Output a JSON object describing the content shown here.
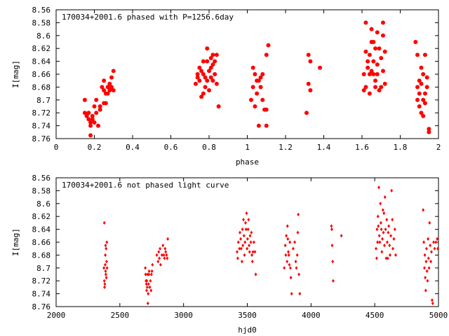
{
  "chart_data": [
    {
      "type": "scatter",
      "title": "170034+2001.6 phased with P=1256.6day",
      "xlabel": "phase",
      "ylabel": "I[mag]",
      "xlim": [
        0,
        2
      ],
      "ylim": [
        8.76,
        8.56
      ],
      "y_inverted": true,
      "xticks": [
        "0",
        "0.2",
        "0.4",
        "0.6",
        "0.8",
        "1",
        "1.2",
        "1.4",
        "1.6",
        "1.8",
        "2"
      ],
      "yticks": [
        "8.56",
        "8.58",
        "8.6",
        "8.62",
        "8.64",
        "8.66",
        "8.68",
        "8.7",
        "8.72",
        "8.74",
        "8.76"
      ],
      "marker": "filled-circle-large",
      "color": "#ff0000",
      "points": [
        [
          0.15,
          8.7
        ],
        [
          0.15,
          8.72
        ],
        [
          0.16,
          8.725
        ],
        [
          0.17,
          8.72
        ],
        [
          0.17,
          8.73
        ],
        [
          0.18,
          8.735
        ],
        [
          0.18,
          8.74
        ],
        [
          0.18,
          8.755
        ],
        [
          0.19,
          8.725
        ],
        [
          0.19,
          8.73
        ],
        [
          0.2,
          8.71
        ],
        [
          0.2,
          8.735
        ],
        [
          0.21,
          8.72
        ],
        [
          0.21,
          8.7
        ],
        [
          0.22,
          8.74
        ],
        [
          0.23,
          8.71
        ],
        [
          0.23,
          8.715
        ],
        [
          0.24,
          8.68
        ],
        [
          0.25,
          8.67
        ],
        [
          0.25,
          8.685
        ],
        [
          0.25,
          8.705
        ],
        [
          0.26,
          8.69
        ],
        [
          0.26,
          8.705
        ],
        [
          0.27,
          8.68
        ],
        [
          0.27,
          8.69
        ],
        [
          0.28,
          8.675
        ],
        [
          0.28,
          8.685
        ],
        [
          0.29,
          8.665
        ],
        [
          0.29,
          8.68
        ],
        [
          0.3,
          8.655
        ],
        [
          0.3,
          8.685
        ],
        [
          0.73,
          8.675
        ],
        [
          0.74,
          8.66
        ],
        [
          0.74,
          8.665
        ],
        [
          0.75,
          8.67
        ],
        [
          0.75,
          8.65
        ],
        [
          0.76,
          8.655
        ],
        [
          0.76,
          8.695
        ],
        [
          0.77,
          8.64
        ],
        [
          0.77,
          8.66
        ],
        [
          0.77,
          8.69
        ],
        [
          0.78,
          8.665
        ],
        [
          0.78,
          8.68
        ],
        [
          0.79,
          8.62
        ],
        [
          0.79,
          8.64
        ],
        [
          0.79,
          8.67
        ],
        [
          0.8,
          8.655
        ],
        [
          0.8,
          8.685
        ],
        [
          0.81,
          8.65
        ],
        [
          0.81,
          8.665
        ],
        [
          0.81,
          8.635
        ],
        [
          0.82,
          8.63
        ],
        [
          0.82,
          8.645
        ],
        [
          0.82,
          8.67
        ],
        [
          0.83,
          8.64
        ],
        [
          0.83,
          8.66
        ],
        [
          0.84,
          8.675
        ],
        [
          0.84,
          8.63
        ],
        [
          0.85,
          8.71
        ],
        [
          1.02,
          8.7
        ],
        [
          1.03,
          8.68
        ],
        [
          1.03,
          8.65
        ],
        [
          1.04,
          8.66
        ],
        [
          1.04,
          8.71
        ],
        [
          1.05,
          8.69
        ],
        [
          1.05,
          8.67
        ],
        [
          1.06,
          8.67
        ],
        [
          1.06,
          8.74
        ],
        [
          1.07,
          8.665
        ],
        [
          1.07,
          8.68
        ],
        [
          1.08,
          8.7
        ],
        [
          1.08,
          8.66
        ],
        [
          1.09,
          8.715
        ],
        [
          1.1,
          8.63
        ],
        [
          1.1,
          8.715
        ],
        [
          1.1,
          8.74
        ],
        [
          1.11,
          8.615
        ],
        [
          1.31,
          8.72
        ],
        [
          1.32,
          8.675
        ],
        [
          1.32,
          8.63
        ],
        [
          1.33,
          8.64
        ],
        [
          1.33,
          8.685
        ],
        [
          1.38,
          8.65
        ],
        [
          1.61,
          8.685
        ],
        [
          1.61,
          8.66
        ],
        [
          1.62,
          8.58
        ],
        [
          1.62,
          8.625
        ],
        [
          1.62,
          8.68
        ],
        [
          1.63,
          8.65
        ],
        [
          1.63,
          8.64
        ],
        [
          1.64,
          8.69
        ],
        [
          1.64,
          8.63
        ],
        [
          1.64,
          8.66
        ],
        [
          1.65,
          8.59
        ],
        [
          1.65,
          8.655
        ],
        [
          1.65,
          8.61
        ],
        [
          1.66,
          8.66
        ],
        [
          1.66,
          8.61
        ],
        [
          1.66,
          8.64
        ],
        [
          1.67,
          8.67
        ],
        [
          1.67,
          8.68
        ],
        [
          1.67,
          8.62
        ],
        [
          1.68,
          8.595
        ],
        [
          1.68,
          8.645
        ],
        [
          1.68,
          8.66
        ],
        [
          1.69,
          8.62
        ],
        [
          1.69,
          8.685
        ],
        [
          1.7,
          8.635
        ],
        [
          1.7,
          8.68
        ],
        [
          1.71,
          8.58
        ],
        [
          1.71,
          8.6
        ],
        [
          1.71,
          8.655
        ],
        [
          1.72,
          8.625
        ],
        [
          1.72,
          8.675
        ],
        [
          1.88,
          8.61
        ],
        [
          1.89,
          8.63
        ],
        [
          1.89,
          8.68
        ],
        [
          1.89,
          8.7
        ],
        [
          1.9,
          8.67
        ],
        [
          1.9,
          8.69
        ],
        [
          1.9,
          8.71
        ],
        [
          1.91,
          8.72
        ],
        [
          1.91,
          8.65
        ],
        [
          1.91,
          8.675
        ],
        [
          1.92,
          8.7
        ],
        [
          1.92,
          8.66
        ],
        [
          1.92,
          8.725
        ],
        [
          1.93,
          8.69
        ],
        [
          1.93,
          8.705
        ],
        [
          1.93,
          8.63
        ],
        [
          1.94,
          8.665
        ],
        [
          1.94,
          8.68
        ],
        [
          1.95,
          8.745
        ],
        [
          1.95,
          8.75
        ]
      ]
    },
    {
      "type": "scatter",
      "title": "170034+2001.6 not phased light curve",
      "xlabel": "hjd0",
      "ylabel": "I[mag]",
      "xlim": [
        2000,
        5000
      ],
      "ylim": [
        8.76,
        8.56
      ],
      "y_inverted": true,
      "xticks": [
        "2000",
        "2500",
        "3000",
        "3500",
        "4000",
        "4500",
        "5000"
      ],
      "yticks": [
        "8.56",
        "8.58",
        "8.6",
        "8.62",
        "8.64",
        "8.66",
        "8.68",
        "8.7",
        "8.72",
        "8.74",
        "8.76"
      ],
      "marker": "filled-diamond",
      "color": "#ff0000",
      "points": [
        [
          2375,
          8.7
        ],
        [
          2378,
          8.72
        ],
        [
          2380,
          8.73
        ],
        [
          2382,
          8.725
        ],
        [
          2385,
          8.695
        ],
        [
          2386,
          8.68
        ],
        [
          2388,
          8.665
        ],
        [
          2388,
          8.705
        ],
        [
          2390,
          8.71
        ],
        [
          2392,
          8.67
        ],
        [
          2394,
          8.715
        ],
        [
          2396,
          8.69
        ],
        [
          2398,
          8.66
        ],
        [
          2400,
          8.7
        ],
        [
          2378,
          8.63
        ],
        [
          2700,
          8.7
        ],
        [
          2702,
          8.71
        ],
        [
          2705,
          8.72
        ],
        [
          2708,
          8.725
        ],
        [
          2710,
          8.735
        ],
        [
          2712,
          8.72
        ],
        [
          2715,
          8.73
        ],
        [
          2718,
          8.71
        ],
        [
          2720,
          8.755
        ],
        [
          2722,
          8.74
        ],
        [
          2725,
          8.725
        ],
        [
          2728,
          8.71
        ],
        [
          2730,
          8.705
        ],
        [
          2735,
          8.73
        ],
        [
          2740,
          8.72
        ],
        [
          2745,
          8.735
        ],
        [
          2748,
          8.71
        ],
        [
          2752,
          8.705
        ],
        [
          2756,
          8.695
        ],
        [
          2790,
          8.68
        ],
        [
          2800,
          8.69
        ],
        [
          2805,
          8.675
        ],
        [
          2810,
          8.685
        ],
        [
          2815,
          8.67
        ],
        [
          2820,
          8.695
        ],
        [
          2830,
          8.68
        ],
        [
          2838,
          8.665
        ],
        [
          2845,
          8.68
        ],
        [
          2850,
          8.685
        ],
        [
          2855,
          8.67
        ],
        [
          2860,
          8.675
        ],
        [
          2866,
          8.68
        ],
        [
          2872,
          8.685
        ],
        [
          2876,
          8.655
        ],
        [
          3420,
          8.675
        ],
        [
          3425,
          8.685
        ],
        [
          3430,
          8.66
        ],
        [
          3438,
          8.67
        ],
        [
          3442,
          8.645
        ],
        [
          3448,
          8.655
        ],
        [
          3452,
          8.67
        ],
        [
          3458,
          8.69
        ],
        [
          3462,
          8.64
        ],
        [
          3465,
          8.665
        ],
        [
          3470,
          8.625
        ],
        [
          3474,
          8.65
        ],
        [
          3478,
          8.68
        ],
        [
          3482,
          8.66
        ],
        [
          3486,
          8.63
        ],
        [
          3490,
          8.64
        ],
        [
          3494,
          8.615
        ],
        [
          3498,
          8.67
        ],
        [
          3502,
          8.655
        ],
        [
          3506,
          8.64
        ],
        [
          3510,
          8.625
        ],
        [
          3514,
          8.665
        ],
        [
          3518,
          8.675
        ],
        [
          3522,
          8.65
        ],
        [
          3528,
          8.66
        ],
        [
          3532,
          8.645
        ],
        [
          3536,
          8.68
        ],
        [
          3540,
          8.69
        ],
        [
          3545,
          8.675
        ],
        [
          3552,
          8.66
        ],
        [
          3560,
          8.675
        ],
        [
          3566,
          8.71
        ],
        [
          3790,
          8.7
        ],
        [
          3798,
          8.665
        ],
        [
          3802,
          8.68
        ],
        [
          3806,
          8.65
        ],
        [
          3812,
          8.69
        ],
        [
          3815,
          8.635
        ],
        [
          3818,
          8.655
        ],
        [
          3822,
          8.675
        ],
        [
          3826,
          8.68
        ],
        [
          3830,
          8.695
        ],
        [
          3834,
          8.66
        ],
        [
          3838,
          8.7
        ],
        [
          3842,
          8.715
        ],
        [
          3848,
          8.74
        ],
        [
          3860,
          8.67
        ],
        [
          3872,
          8.66
        ],
        [
          3880,
          8.69
        ],
        [
          3885,
          8.7
        ],
        [
          3892,
          8.68
        ],
        [
          3896,
          8.645
        ],
        [
          3900,
          8.617
        ],
        [
          3905,
          8.71
        ],
        [
          3912,
          8.74
        ],
        [
          4160,
          8.635
        ],
        [
          4163,
          8.64
        ],
        [
          4166,
          8.665
        ],
        [
          4170,
          8.69
        ],
        [
          4174,
          8.72
        ],
        [
          4238,
          8.65
        ],
        [
          4510,
          8.67
        ],
        [
          4515,
          8.685
        ],
        [
          4518,
          8.64
        ],
        [
          4522,
          8.66
        ],
        [
          4525,
          8.62
        ],
        [
          4528,
          8.635
        ],
        [
          4532,
          8.575
        ],
        [
          4536,
          8.65
        ],
        [
          4540,
          8.66
        ],
        [
          4544,
          8.6
        ],
        [
          4548,
          8.63
        ],
        [
          4552,
          8.64
        ],
        [
          4556,
          8.675
        ],
        [
          4560,
          8.655
        ],
        [
          4564,
          8.61
        ],
        [
          4568,
          8.645
        ],
        [
          4572,
          8.615
        ],
        [
          4576,
          8.665
        ],
        [
          4580,
          8.59
        ],
        [
          4585,
          8.64
        ],
        [
          4590,
          8.685
        ],
        [
          4594,
          8.625
        ],
        [
          4598,
          8.66
        ],
        [
          4602,
          8.685
        ],
        [
          4606,
          8.645
        ],
        [
          4610,
          8.635
        ],
        [
          4616,
          8.665
        ],
        [
          4620,
          8.68
        ],
        [
          4626,
          8.65
        ],
        [
          4632,
          8.58
        ],
        [
          4638,
          8.625
        ],
        [
          4642,
          8.67
        ],
        [
          4650,
          8.655
        ],
        [
          4658,
          8.64
        ],
        [
          4664,
          8.68
        ],
        [
          4880,
          8.61
        ],
        [
          4885,
          8.66
        ],
        [
          4890,
          8.7
        ],
        [
          4893,
          8.68
        ],
        [
          4896,
          8.715
        ],
        [
          4900,
          8.735
        ],
        [
          4903,
          8.69
        ],
        [
          4906,
          8.67
        ],
        [
          4910,
          8.705
        ],
        [
          4914,
          8.72
        ],
        [
          4918,
          8.655
        ],
        [
          4922,
          8.685
        ],
        [
          4926,
          8.7
        ],
        [
          4930,
          8.63
        ],
        [
          4935,
          8.665
        ],
        [
          4940,
          8.69
        ],
        [
          4945,
          8.675
        ],
        [
          4950,
          8.75
        ],
        [
          4955,
          8.755
        ],
        [
          4962,
          8.66
        ],
        [
          4970,
          8.67
        ],
        [
          4980,
          8.66
        ],
        [
          4990,
          8.655
        ],
        [
          4995,
          8.67
        ]
      ]
    }
  ]
}
